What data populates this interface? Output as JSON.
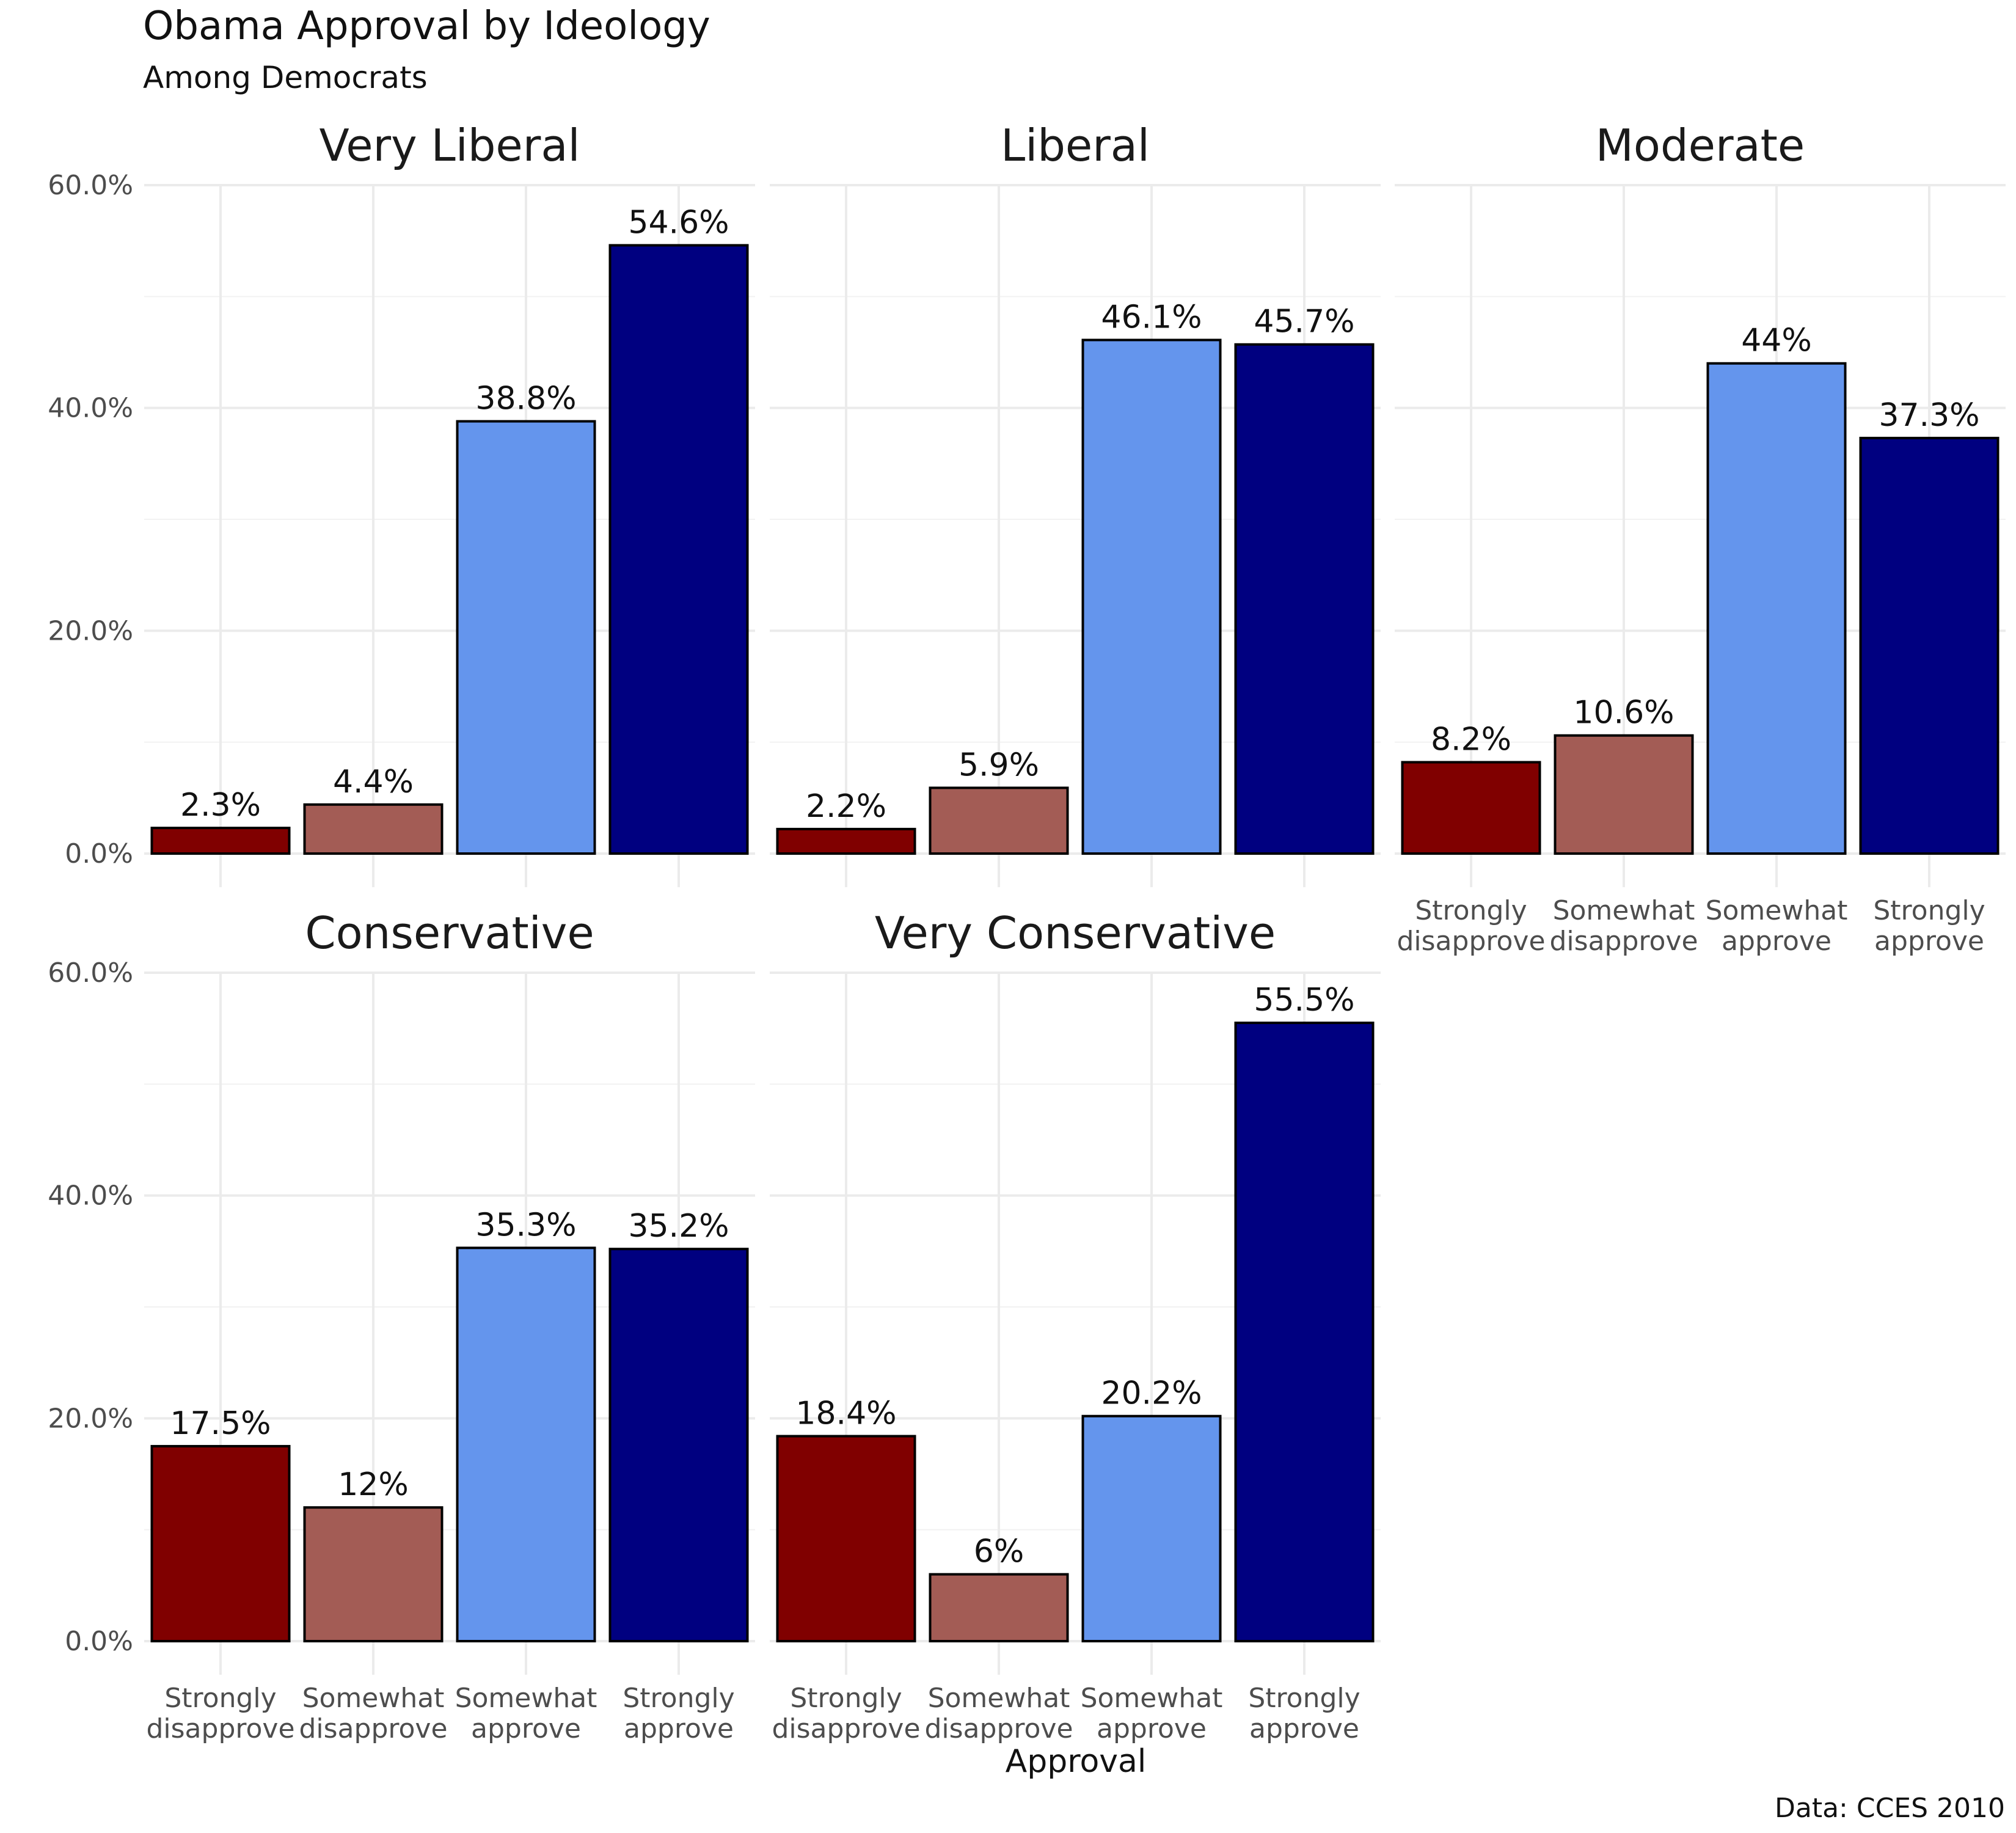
{
  "chart_data": {
    "type": "bar",
    "title": "Obama Approval by Ideology",
    "subtitle": "Among Democrats",
    "xlabel": "Approval",
    "ylabel": "",
    "caption": "Data: CCES 2010",
    "ylim": [
      0,
      0.6
    ],
    "y_ticks": [
      "0.0%",
      "20.0%",
      "40.0%",
      "60.0%"
    ],
    "y_tick_values": [
      0,
      0.2,
      0.4,
      0.6
    ],
    "categories": [
      "Strongly disapprove",
      "Somewhat disapprove",
      "Somewhat approve",
      "Strongly approve"
    ],
    "category_labels": [
      [
        "Strongly",
        "disapprove"
      ],
      [
        "Somewhat",
        "disapprove"
      ],
      [
        "Somewhat",
        "approve"
      ],
      [
        "Strongly",
        "approve"
      ]
    ],
    "colors": [
      "#800000",
      "#A35C55",
      "#6495ED",
      "#000080"
    ],
    "grid": true,
    "legend": "none",
    "facets": [
      {
        "name": "Very Liberal",
        "values": [
          0.023,
          0.044,
          0.388,
          0.546
        ],
        "labels": [
          "2.3%",
          "4.4%",
          "38.8%",
          "54.6%"
        ]
      },
      {
        "name": "Liberal",
        "values": [
          0.022,
          0.059,
          0.461,
          0.457
        ],
        "labels": [
          "2.2%",
          "5.9%",
          "46.1%",
          "45.7%"
        ]
      },
      {
        "name": "Moderate",
        "values": [
          0.082,
          0.106,
          0.44,
          0.373
        ],
        "labels": [
          "8.2%",
          "10.6%",
          "44%",
          "37.3%"
        ]
      },
      {
        "name": "Conservative",
        "values": [
          0.175,
          0.12,
          0.353,
          0.352
        ],
        "labels": [
          "17.5%",
          "12%",
          "35.3%",
          "35.2%"
        ]
      },
      {
        "name": "Very Conservative",
        "values": [
          0.184,
          0.06,
          0.202,
          0.555
        ],
        "labels": [
          "18.4%",
          "6%",
          "20.2%",
          "55.5%"
        ]
      }
    ]
  }
}
